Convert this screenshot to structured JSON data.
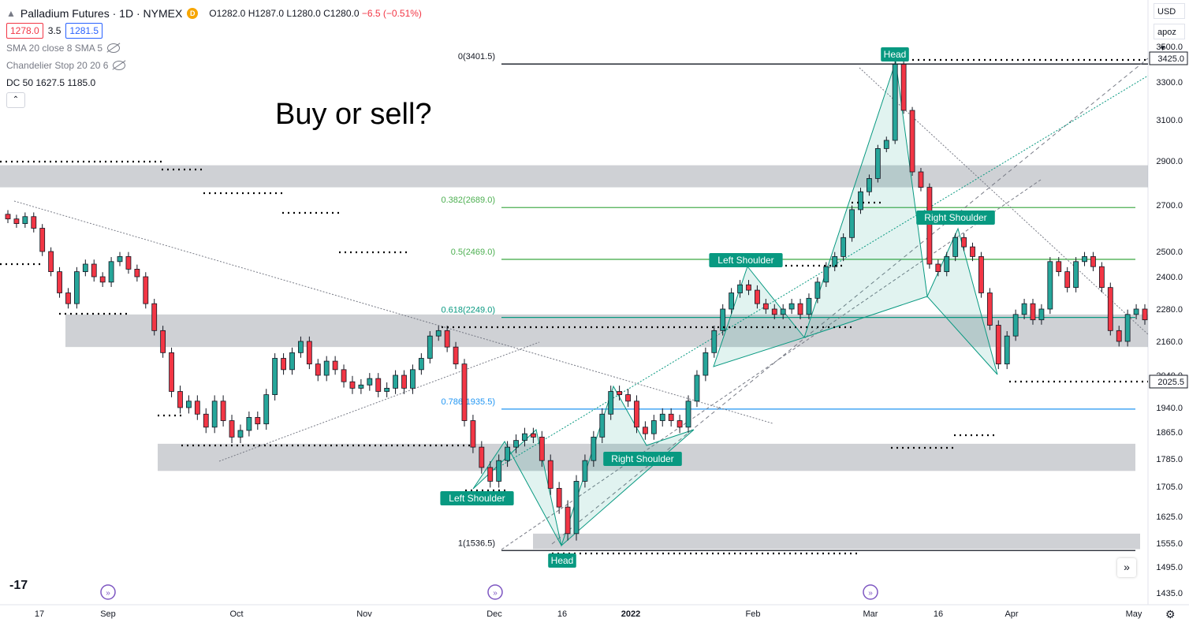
{
  "legend": {
    "symbol": "Palladium Futures · 1D · NYMEX",
    "badge": "D",
    "ohlc": {
      "open": "O1282.0",
      "high": "H1287.0",
      "low": "L1280.0",
      "close": "C1280.0",
      "change": "−6.5 (−0.51%)"
    },
    "bid": "1278.0",
    "spread": "3.5",
    "ask": "1281.5",
    "indicators": [
      "SMA 20 close 8 SMA 5",
      "Chandelier Stop 20 20 6",
      "DC 50  1627.5  1185.0"
    ]
  },
  "headline": "Buy or sell?",
  "currency": "USD",
  "scale_mode": "apoz",
  "colors": {
    "up": "#26a69a",
    "down": "#f23645",
    "zone": "#b2b5be",
    "fib_green": "#4caf50",
    "fib_teal": "#089981",
    "fib_blue": "#2196f3",
    "label_bg": "#089981"
  },
  "chart_data": {
    "type": "candlestick",
    "y_axis": {
      "ticks": [
        3500.0,
        3425.0,
        3300.0,
        3100.0,
        2900.0,
        2700.0,
        2500.0,
        2400.0,
        2280.0,
        2160.0,
        2040.0,
        1940.0,
        1865.0,
        1785.0,
        1705.0,
        1625.0,
        1555.0,
        1495.0,
        1435.0
      ]
    },
    "y_axis_labels": [
      "3500.0",
      "3300.0",
      "3100.0",
      "2900.0",
      "2700.0",
      "2500.0",
      "2400.0",
      "2280.0",
      "2160.0",
      "2040.0",
      "1940.0",
      "1865.0",
      "1785.0",
      "1705.0",
      "1625.0",
      "1555.0",
      "1495.0",
      "1435.0"
    ],
    "price_tags": [
      "3425.0",
      "2025.5"
    ],
    "x_axis_labels": [
      "17",
      "Sep",
      "Oct",
      "Nov",
      "Dec",
      "16",
      "2022",
      "Feb",
      "Mar",
      "16",
      "Apr",
      "May"
    ],
    "fib_levels": [
      {
        "label": "0(3401.5)",
        "value": 3401.5
      },
      {
        "label": "0.382(2689.0)",
        "value": 2689.0
      },
      {
        "label": "0.5(2469.0)",
        "value": 2469.0
      },
      {
        "label": "0.618(2249.0)",
        "value": 2249.0
      },
      {
        "label": "0.786(1935.5)",
        "value": 1935.5
      },
      {
        "label": "1(1536.5)",
        "value": 1536.5
      }
    ],
    "zones": [
      {
        "from": 2780,
        "to": 2880
      },
      {
        "from": 2140,
        "to": 2260
      },
      {
        "from": 1750,
        "to": 1830
      },
      {
        "from": 1540,
        "to": 1580
      }
    ],
    "pattern_labels": [
      "Head",
      "Left Shoulder",
      "Right Shoulder",
      "Head",
      "Left Shoulder",
      "Right Shoulder"
    ],
    "closes_approx": [
      2640,
      2620,
      2650,
      2600,
      2500,
      2420,
      2340,
      2300,
      2420,
      2450,
      2400,
      2380,
      2460,
      2480,
      2430,
      2400,
      2300,
      2200,
      2120,
      1990,
      1940,
      1960,
      1920,
      1880,
      1960,
      1900,
      1850,
      1870,
      1910,
      1890,
      1980,
      2100,
      2060,
      2120,
      2160,
      2080,
      2040,
      2090,
      2060,
      2020,
      2000,
      2010,
      2030,
      1990,
      2000,
      2040,
      2000,
      2060,
      2100,
      2180,
      2200,
      2140,
      2080,
      1900,
      1820,
      1760,
      1720,
      1780,
      1820,
      1840,
      1860,
      1850,
      1780,
      1700,
      1650,
      1580,
      1720,
      1780,
      1850,
      1920,
      1990,
      1980,
      1960,
      1880,
      1860,
      1900,
      1920,
      1900,
      1880,
      1960,
      2040,
      2120,
      2200,
      2280,
      2340,
      2370,
      2350,
      2300,
      2280,
      2260,
      2280,
      2300,
      2260,
      2320,
      2380,
      2440,
      2480,
      2560,
      2680,
      2760,
      2820,
      2960,
      3000,
      3400,
      3150,
      2850,
      2780,
      2450,
      2420,
      2480,
      2560,
      2520,
      2480,
      2340,
      2220,
      2080,
      2180,
      2260,
      2300,
      2240,
      2280,
      2460,
      2420,
      2360,
      2460,
      2480,
      2440,
      2360,
      2200,
      2160,
      2260,
      2280,
      2240
    ]
  }
}
